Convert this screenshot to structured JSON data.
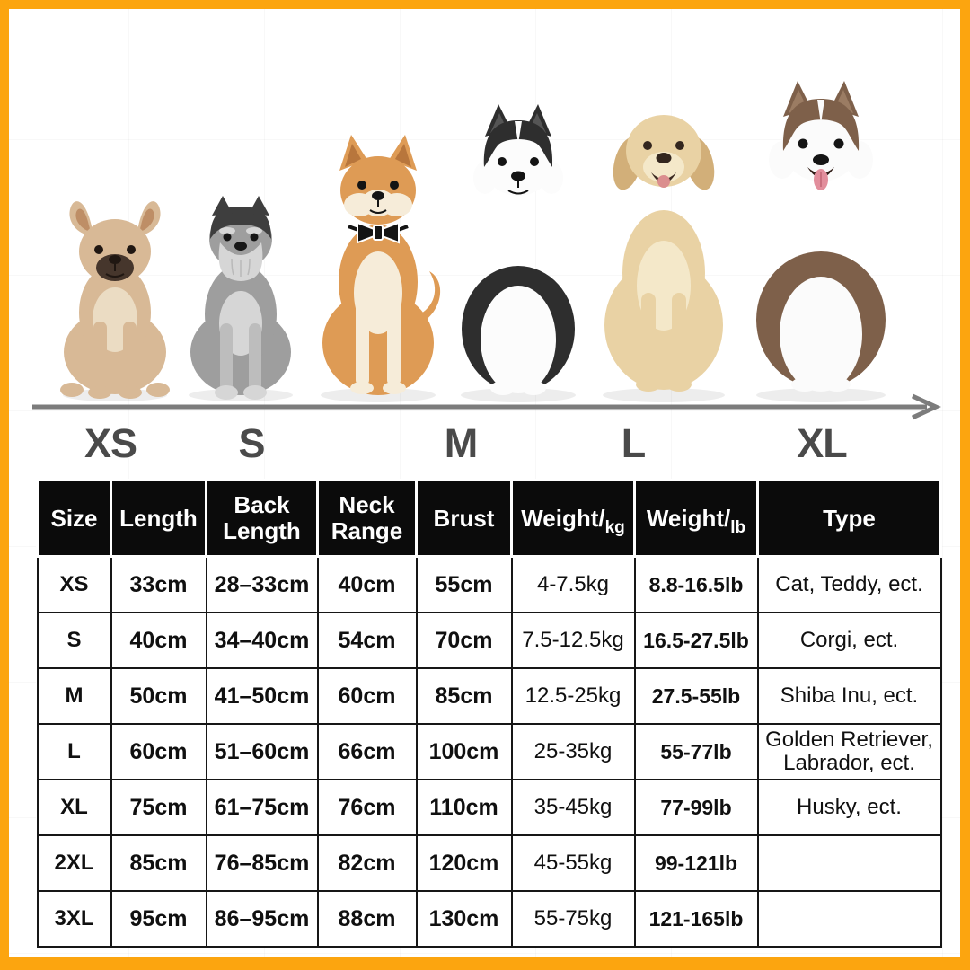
{
  "colors": {
    "frame": "#FCA50F",
    "bg": "#FFFFFF",
    "arrow": "#7C7C7C",
    "label": "#4A4A4A",
    "line": "#161616",
    "header_bg": "#0B0B0B",
    "header_text": "#FFFFFF",
    "cell_text": "#101010"
  },
  "size_axis": {
    "labels": [
      "XS",
      "S",
      "M",
      "L",
      "XL"
    ]
  },
  "dogs": [
    {
      "name": "french-bulldog-photo",
      "colors": {
        "c1": "#D8B996",
        "c2": "#BE8E66",
        "c3": "#EBDCC3",
        "c4": "#46362C",
        "c5": "#201712"
      }
    },
    {
      "name": "miniature-schnauzer-photo",
      "colors": {
        "c1": "#9E9E9E",
        "c2": "#3E3E3E",
        "c3": "#D6D6D6",
        "c4": "#BDBDBD",
        "c5": "#161616"
      }
    },
    {
      "name": "shiba-inu-photo",
      "colors": {
        "c1": "#DE9B55",
        "c2": "#B8763C",
        "c3": "#F6ECD9",
        "c4": "#141414",
        "c5": "#FFFFFF"
      }
    },
    {
      "name": "siberian-husky-photo",
      "colors": {
        "c1": "#2E2E2E",
        "c2": "#555555",
        "c3": "#FCFCFC",
        "c4": "#141414",
        "c5": "#3A2E24"
      }
    },
    {
      "name": "golden-retriever-photo",
      "colors": {
        "c1": "#E9D2A4",
        "c2": "#D2AF79",
        "c3": "#F4E8C9",
        "c4": "#33261E",
        "c5": "#3C2A22"
      }
    },
    {
      "name": "alaskan-malamute-photo",
      "colors": {
        "c1": "#7E604A",
        "c2": "#9B7C63",
        "c3": "#FBFBFB",
        "c4": "#151515",
        "c5": "#E28E9C"
      }
    }
  ],
  "table": {
    "header": {
      "size": "Size",
      "length": "Length",
      "back_line1": "Back",
      "back_line2": "Length",
      "neck_line1": "Neck",
      "neck_line2": "Range",
      "brust": "Brust",
      "weight_kg_main": "Weight/",
      "weight_kg_unit": "kg",
      "weight_lb_main": "Weight/",
      "weight_lb_unit": "lb",
      "type": "Type"
    },
    "rows": [
      [
        "XS",
        "33cm",
        "28–33cm",
        "40cm",
        "55cm",
        "4-7.5kg",
        "8.8-16.5lb",
        "Cat, Teddy, ect."
      ],
      [
        "S",
        "40cm",
        "34–40cm",
        "54cm",
        "70cm",
        "7.5-12.5kg",
        "16.5-27.5lb",
        "Corgi, ect."
      ],
      [
        "M",
        "50cm",
        "41–50cm",
        "60cm",
        "85cm",
        "12.5-25kg",
        "27.5-55lb",
        "Shiba Inu, ect."
      ],
      [
        "L",
        "60cm",
        "51–60cm",
        "66cm",
        "100cm",
        "25-35kg",
        "55-77lb",
        "Golden Retriever, Labrador, ect."
      ],
      [
        "XL",
        "75cm",
        "61–75cm",
        "76cm",
        "110cm",
        "35-45kg",
        "77-99lb",
        "Husky, ect."
      ],
      [
        "2XL",
        "85cm",
        "76–85cm",
        "82cm",
        "120cm",
        "45-55kg",
        "99-121lb",
        ""
      ],
      [
        "3XL",
        "95cm",
        "86–95cm",
        "88cm",
        "130cm",
        "55-75kg",
        "121-165lb",
        ""
      ]
    ]
  }
}
